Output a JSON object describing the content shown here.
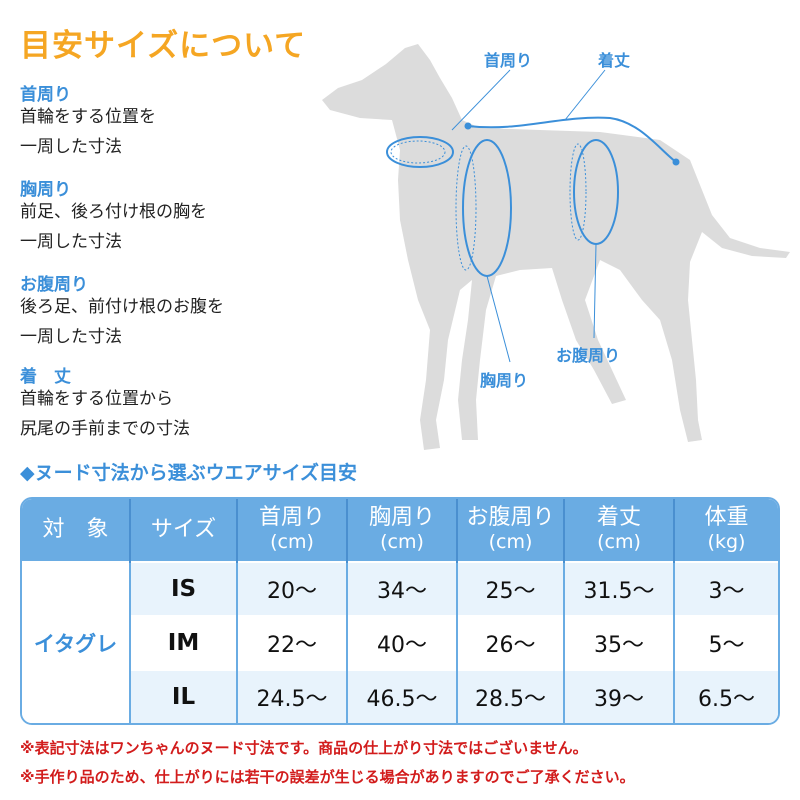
{
  "title": "目安サイズについて",
  "definitions": [
    {
      "heading": "首周り",
      "lines": [
        "首輪をする位置を",
        "一周した寸法"
      ]
    },
    {
      "heading": "胸周り",
      "lines": [
        "前足、後ろ付け根の胸を",
        "一周した寸法"
      ]
    },
    {
      "heading": "お腹周り",
      "lines": [
        "後ろ足、前付け根のお腹を",
        "一周した寸法"
      ]
    },
    {
      "heading": "着　丈",
      "lines": [
        "首輪をする位置から",
        "尻尾の手前までの寸法"
      ]
    }
  ],
  "diagram_labels": {
    "neck": "首周り",
    "length": "着丈",
    "chest": "胸周り",
    "belly": "お腹周り"
  },
  "table_title": "◆ヌード寸法から選ぶウエアサイズ目安",
  "table": {
    "headers": [
      {
        "label": "対　象",
        "unit": ""
      },
      {
        "label": "サイズ",
        "unit": ""
      },
      {
        "label": "首周り",
        "unit": "(cm)"
      },
      {
        "label": "胸周り",
        "unit": "(cm)"
      },
      {
        "label": "お腹周り",
        "unit": "(cm)"
      },
      {
        "label": "着丈",
        "unit": "(cm)"
      },
      {
        "label": "体重",
        "unit": "(kg)"
      }
    ],
    "target": "イタグレ",
    "rows": [
      [
        "IS",
        "20〜",
        "34〜",
        "25〜",
        "31.5〜",
        "3〜"
      ],
      [
        "IM",
        "22〜",
        "40〜",
        "26〜",
        "35〜",
        "5〜"
      ],
      [
        "IL",
        "24.5〜",
        "46.5〜",
        "28.5〜",
        "39〜",
        "6.5〜"
      ]
    ]
  },
  "notes": [
    "※表記寸法はワンちゃんのヌード寸法です。商品の仕上がり寸法ではございません。",
    "※手作り品のため、仕上がりには若干の誤差が生じる場合がありますのでご了承ください。"
  ],
  "colors": {
    "accent_orange": "#f5a623",
    "accent_blue": "#3b8fd9",
    "header_blue": "#6aace3",
    "note_red": "#d21c1c",
    "dog_gray": "#dcdcdc"
  }
}
